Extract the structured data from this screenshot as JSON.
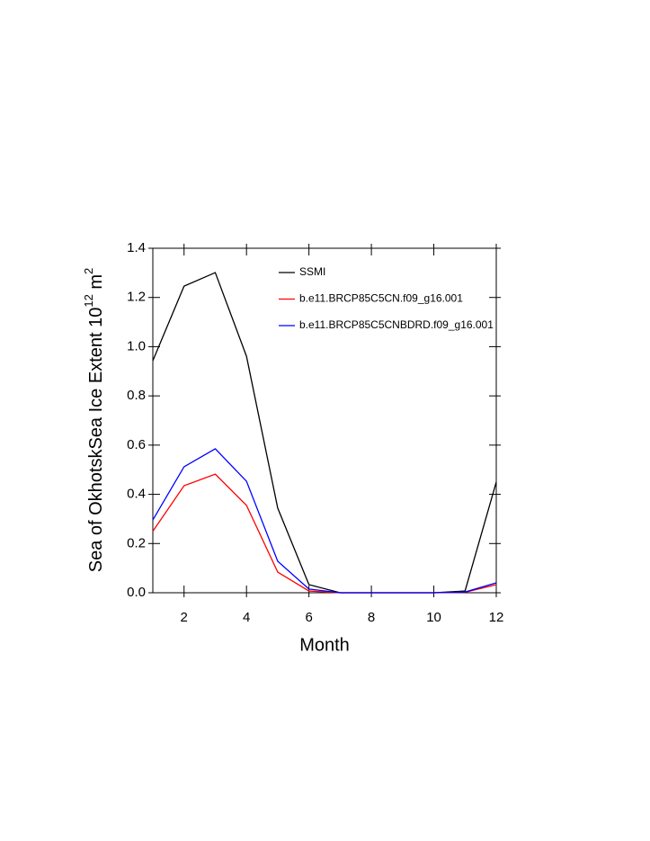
{
  "chart_data": {
    "type": "line",
    "xlabel": "Month",
    "ylabel": {
      "main": "Sea of OkhotskSea Ice Extent 10",
      "exponent": "12",
      "unit": " m",
      "unit_exponent": "2"
    },
    "x": [
      1,
      2,
      3,
      4,
      5,
      6,
      7,
      8,
      9,
      10,
      11,
      12
    ],
    "series": [
      {
        "name": "SSMI",
        "color": "#000000",
        "values": [
          0.943,
          1.246,
          1.301,
          0.961,
          0.344,
          0.033,
          0.0,
          0.0,
          0.0,
          0.0,
          0.007,
          0.45
        ]
      },
      {
        "name": "b.e11.BRCP85C5CN.f09_g16.001",
        "color": "#ff0000",
        "values": [
          0.25,
          0.435,
          0.482,
          0.355,
          0.084,
          0.007,
          0.0,
          0.0,
          0.0,
          0.0,
          0.002,
          0.033
        ]
      },
      {
        "name": "b.e11.BRCP85C5CNBDRD.f09_g16.001",
        "color": "#0000ff",
        "values": [
          0.296,
          0.512,
          0.585,
          0.453,
          0.128,
          0.015,
          0.0,
          0.0,
          0.0,
          0.0,
          0.003,
          0.04
        ]
      }
    ],
    "xlim": [
      1,
      12
    ],
    "xticks": [
      2,
      4,
      6,
      8,
      10,
      12
    ],
    "ylim": [
      0,
      1.4
    ],
    "yticks": [
      {
        "value": 0,
        "label": "0.0"
      },
      0.2,
      0.4,
      0.6,
      0.8,
      {
        "value": 1,
        "label": "1.0"
      },
      1.2,
      1.4
    ],
    "legend": "top-right"
  }
}
